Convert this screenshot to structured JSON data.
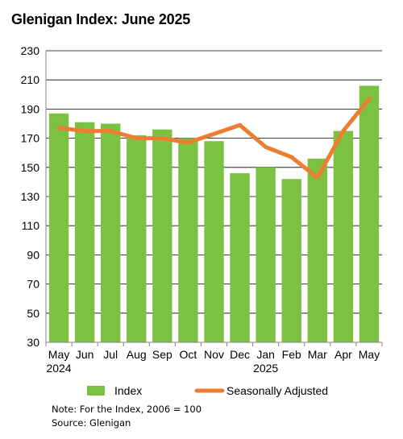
{
  "title": "Glenigan Index: June 2025",
  "note": "Note: For the Index, 2006 = 100",
  "source": "Source: Glenigan",
  "colors": {
    "bars": "#7cc242",
    "line": "#ed7d31",
    "grid": "#000000",
    "axis": "#868686"
  },
  "chart_data": {
    "type": "bar",
    "categories": [
      "May",
      "Jun",
      "Jul",
      "Aug",
      "Sep",
      "Oct",
      "Nov",
      "Dec",
      "Jan",
      "Feb",
      "Mar",
      "Apr",
      "May"
    ],
    "year_labels": [
      {
        "category_index": 0,
        "text": "2024"
      },
      {
        "category_index": 8,
        "text": "2025"
      }
    ],
    "series": [
      {
        "name": "Index",
        "type": "bar",
        "values": [
          187,
          181,
          180,
          172,
          176,
          170,
          168,
          146,
          150,
          142,
          156,
          175,
          206
        ]
      },
      {
        "name": "Seasonally Adjusted",
        "type": "line",
        "values": [
          177,
          175,
          175,
          170,
          170,
          167,
          173,
          179,
          164,
          157,
          143,
          175,
          197
        ]
      }
    ],
    "ylim": [
      30,
      230
    ],
    "yticks": [
      30,
      50,
      70,
      90,
      110,
      130,
      150,
      170,
      190,
      210,
      230
    ],
    "grid": true,
    "legend_position": "bottom"
  }
}
